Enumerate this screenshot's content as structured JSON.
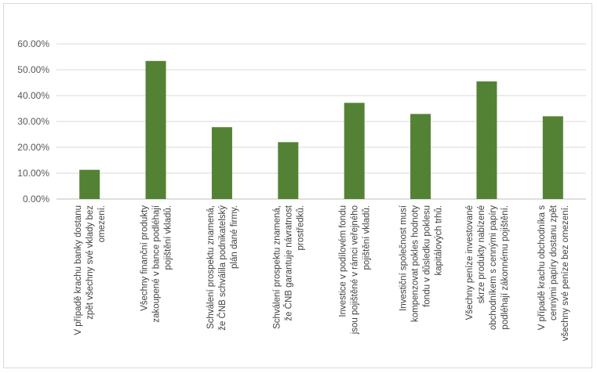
{
  "chart_data": {
    "type": "bar",
    "title": "",
    "xlabel": "",
    "ylabel": "",
    "ylim": [
      0,
      0.6
    ],
    "y_ticks": [
      "0.00%",
      "10.00%",
      "20.00%",
      "30.00%",
      "40.00%",
      "50.00%",
      "60.00%"
    ],
    "grid": true,
    "bar_color": "#548235",
    "categories": [
      [
        "V případě krachu banky dostanu",
        "zpět všechny své vklady bez",
        "omezení."
      ],
      [
        "Všechny finanční produkty",
        "zakoupené v bance podléhají",
        "pojištění vkladů."
      ],
      [
        "Schválení prospektu znamená,",
        "že ČNB schválila podnikatelský",
        "plán dané firmy."
      ],
      [
        "Schválení prospektu znamená,",
        "že ČNB garantuje návratnost",
        "prostředků."
      ],
      [
        "Investice v podílovém fondu",
        "jsou pojištěné v rámci veřejného",
        "pojištění vkladů."
      ],
      [
        "Investiční společnost musí",
        "kompenzovat pokles hodnoty",
        "fondu v důsledku poklesu",
        "kapitálových trhů."
      ],
      [
        "Všechny peníze investované",
        "skrze produkty nabízené",
        "obchodníkem s cennými papíry",
        "podléhají zákonnému pojištění."
      ],
      [
        "V případě krachu obchodníka s",
        "cennými papíry dostanu zpět",
        "všechny své peníze bez omezení."
      ]
    ],
    "values": [
      0.113,
      0.534,
      0.278,
      0.22,
      0.372,
      0.329,
      0.455,
      0.32
    ]
  }
}
